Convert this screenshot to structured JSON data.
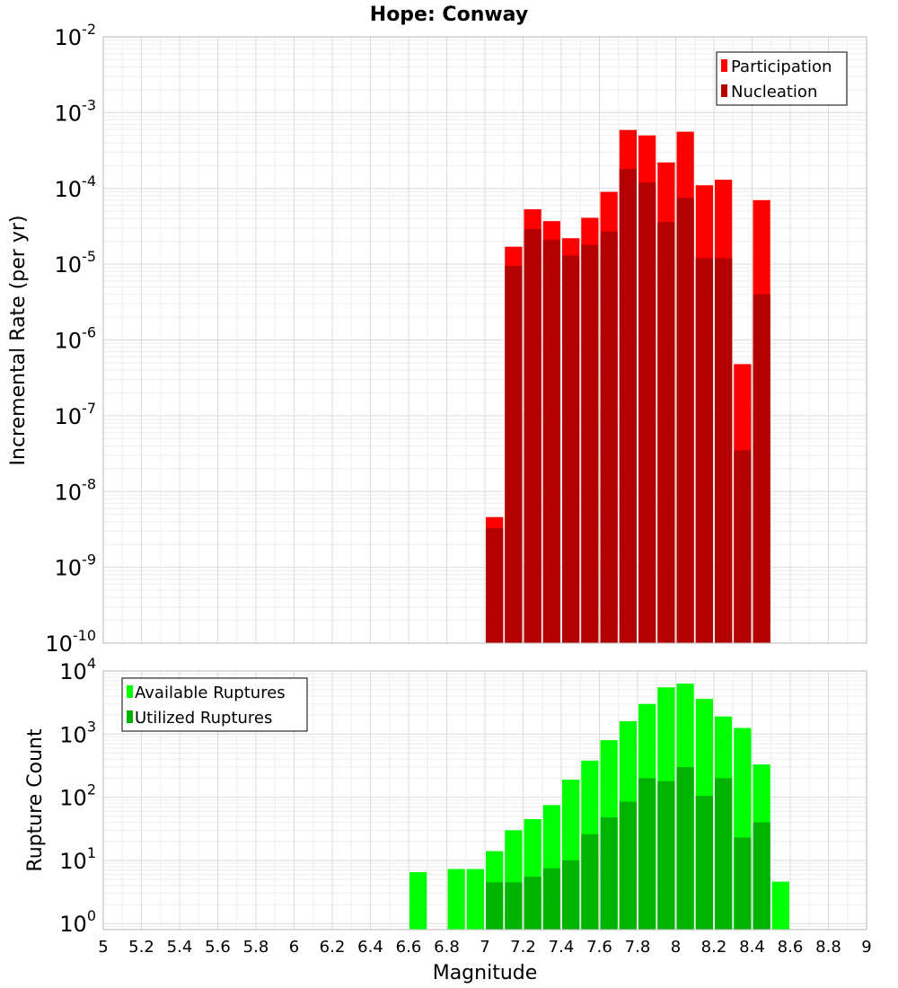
{
  "chart_data": [
    {
      "type": "bar",
      "title": "Hope: Conway",
      "xlabel": "",
      "ylabel": "Incremental Rate (per yr)",
      "yscale": "log",
      "ylim": [
        1e-10,
        0.01
      ],
      "xlim": [
        5,
        9
      ],
      "bin_width": 0.1,
      "grid": true,
      "legend_position": "top-right",
      "colors": {
        "Participation": "#ff0000",
        "Nucleation": "#b30000"
      },
      "series": [
        {
          "name": "Participation",
          "x": [
            7.05,
            7.15,
            7.25,
            7.35,
            7.45,
            7.55,
            7.65,
            7.75,
            7.85,
            7.95,
            8.05,
            8.15,
            8.25,
            8.35,
            8.45
          ],
          "values": [
            4.6e-09,
            1.7e-05,
            5.3e-05,
            3.7e-05,
            2.2e-05,
            4.1e-05,
            9e-05,
            0.00059,
            0.0005,
            0.00022,
            0.00056,
            0.00011,
            0.00013,
            4.8e-07,
            7e-05
          ]
        },
        {
          "name": "Nucleation",
          "x": [
            7.05,
            7.15,
            7.25,
            7.35,
            7.45,
            7.55,
            7.65,
            7.75,
            7.85,
            7.95,
            8.05,
            8.15,
            8.25,
            8.35,
            8.45
          ],
          "values": [
            3.3e-09,
            9.5e-06,
            2.9e-05,
            2.1e-05,
            1.3e-05,
            1.8e-05,
            2.7e-05,
            0.00018,
            0.00012,
            3.6e-05,
            7.5e-05,
            1.2e-05,
            1.2e-05,
            3.5e-08,
            4e-06
          ]
        }
      ]
    },
    {
      "type": "bar",
      "title": "",
      "xlabel": "Magnitude",
      "ylabel": "Rupture Count",
      "yscale": "log",
      "ylim": [
        0.8,
        10000.0
      ],
      "xlim": [
        5,
        9
      ],
      "bin_width": 0.1,
      "grid": true,
      "legend_position": "top-left",
      "xticks": [
        "5",
        "5.2",
        "5.4",
        "5.6",
        "5.8",
        "6",
        "6.2",
        "6.4",
        "6.6",
        "6.8",
        "7",
        "7.2",
        "7.4",
        "7.6",
        "7.8",
        "8",
        "8.2",
        "8.4",
        "8.6",
        "8.8",
        "9"
      ],
      "colors": {
        "Available Ruptures": "#00ff00",
        "Utilized Ruptures": "#00b300"
      },
      "series": [
        {
          "name": "Available Ruptures",
          "x": [
            6.65,
            6.85,
            6.95,
            7.05,
            7.15,
            7.25,
            7.35,
            7.45,
            7.55,
            7.65,
            7.75,
            7.85,
            7.95,
            8.05,
            8.15,
            8.25,
            8.35,
            8.45,
            8.55
          ],
          "values": [
            6.5,
            7.3,
            7.3,
            14,
            30,
            45,
            75,
            190,
            380,
            800,
            1600,
            3000,
            5500,
            6300,
            3600,
            1900,
            1250,
            330,
            4.6
          ]
        },
        {
          "name": "Utilized Ruptures",
          "x": [
            7.05,
            7.15,
            7.25,
            7.35,
            7.45,
            7.55,
            7.65,
            7.75,
            7.85,
            7.95,
            8.05,
            8.15,
            8.25,
            8.35,
            8.45
          ],
          "values": [
            4.5,
            4.5,
            5.5,
            7.5,
            10,
            26,
            48,
            85,
            200,
            180,
            300,
            105,
            200,
            23,
            40
          ]
        }
      ]
    }
  ]
}
